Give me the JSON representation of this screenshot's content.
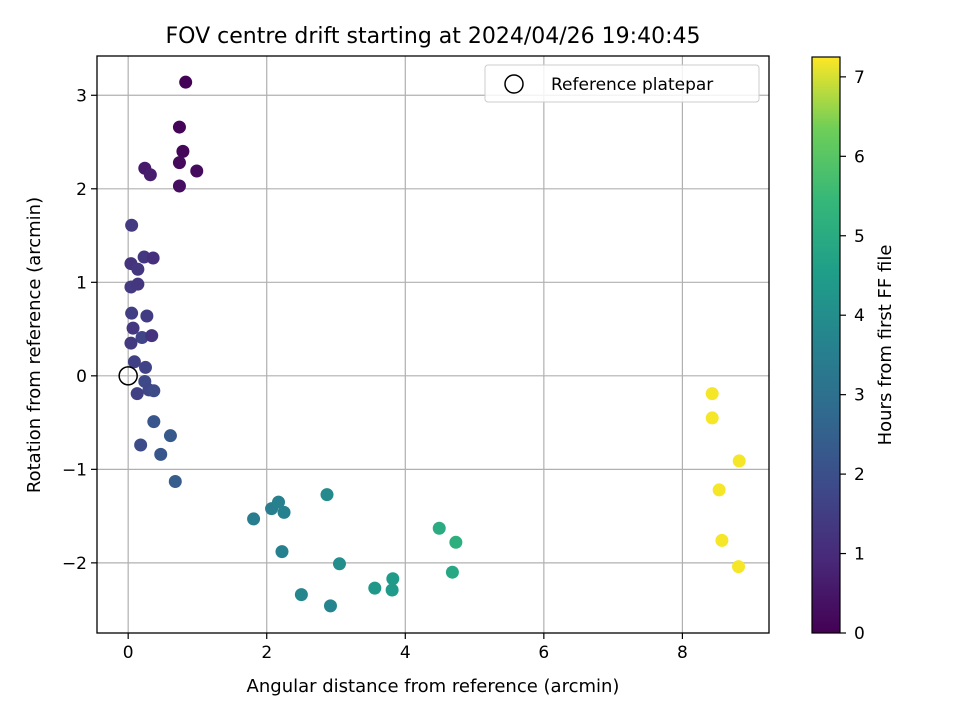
{
  "chart_data": {
    "type": "scatter",
    "title": "FOV centre drift starting at 2024/04/26 19:40:45",
    "xlabel": "Angular distance from reference (arcmin)",
    "ylabel": "Rotation from reference (arcmin)",
    "xlim": [
      -0.45,
      9.25
    ],
    "ylim": [
      -2.75,
      3.42
    ],
    "xticks": [
      0,
      2,
      4,
      6,
      8
    ],
    "xtick_labels": [
      "0",
      "2",
      "4",
      "6",
      "8"
    ],
    "yticks": [
      -2,
      -1,
      0,
      1,
      2,
      3
    ],
    "ytick_labels": [
      "−2",
      "−1",
      "0",
      "1",
      "2",
      "3"
    ],
    "grid": true,
    "colormap": "viridis",
    "colorbar": {
      "label": "Hours from first FF file",
      "range": [
        0,
        7.25
      ],
      "ticks": [
        0,
        1,
        2,
        3,
        4,
        5,
        6,
        7
      ],
      "tick_labels": [
        "0",
        "1",
        "2",
        "3",
        "4",
        "5",
        "6",
        "7"
      ]
    },
    "legend": {
      "location": "top-right",
      "entries": [
        "Reference platepar"
      ]
    },
    "reference_point": {
      "x": 0,
      "y": 0
    },
    "points": [
      {
        "x": 0.83,
        "y": 3.14,
        "h": 0.05
      },
      {
        "x": 0.74,
        "y": 2.66,
        "h": 0.1
      },
      {
        "x": 0.79,
        "y": 2.4,
        "h": 0.15
      },
      {
        "x": 0.74,
        "y": 2.28,
        "h": 0.2
      },
      {
        "x": 0.99,
        "y": 2.19,
        "h": 0.25
      },
      {
        "x": 0.74,
        "y": 2.03,
        "h": 0.3
      },
      {
        "x": 0.24,
        "y": 2.22,
        "h": 0.55
      },
      {
        "x": 0.32,
        "y": 2.15,
        "h": 0.65
      },
      {
        "x": 0.05,
        "y": 1.61,
        "h": 1.4
      },
      {
        "x": 0.04,
        "y": 1.2,
        "h": 1.2
      },
      {
        "x": 0.14,
        "y": 1.14,
        "h": 1.3
      },
      {
        "x": 0.23,
        "y": 1.27,
        "h": 1.35
      },
      {
        "x": 0.36,
        "y": 1.26,
        "h": 1.1
      },
      {
        "x": 0.04,
        "y": 0.95,
        "h": 1.4
      },
      {
        "x": 0.14,
        "y": 0.98,
        "h": 1.3
      },
      {
        "x": 0.05,
        "y": 0.67,
        "h": 1.5
      },
      {
        "x": 0.27,
        "y": 0.64,
        "h": 1.45
      },
      {
        "x": 0.07,
        "y": 0.51,
        "h": 1.3
      },
      {
        "x": 0.2,
        "y": 0.41,
        "h": 1.7
      },
      {
        "x": 0.34,
        "y": 0.43,
        "h": 1.2
      },
      {
        "x": 0.04,
        "y": 0.35,
        "h": 1.4
      },
      {
        "x": 0.09,
        "y": 0.15,
        "h": 1.6
      },
      {
        "x": 0.25,
        "y": 0.09,
        "h": 1.65
      },
      {
        "x": 0.24,
        "y": -0.06,
        "h": 1.8
      },
      {
        "x": 0.3,
        "y": -0.15,
        "h": 1.75
      },
      {
        "x": 0.37,
        "y": -0.16,
        "h": 1.9
      },
      {
        "x": 0.13,
        "y": -0.19,
        "h": 1.6
      },
      {
        "x": 0.37,
        "y": -0.49,
        "h": 2.2
      },
      {
        "x": 0.61,
        "y": -0.64,
        "h": 2.3
      },
      {
        "x": 0.18,
        "y": -0.74,
        "h": 1.9
      },
      {
        "x": 0.47,
        "y": -0.84,
        "h": 2.2
      },
      {
        "x": 0.68,
        "y": -1.13,
        "h": 2.4
      },
      {
        "x": 1.81,
        "y": -1.53,
        "h": 3.45
      },
      {
        "x": 2.07,
        "y": -1.42,
        "h": 3.5
      },
      {
        "x": 2.17,
        "y": -1.35,
        "h": 3.55
      },
      {
        "x": 2.25,
        "y": -1.46,
        "h": 3.6
      },
      {
        "x": 2.22,
        "y": -1.88,
        "h": 3.55
      },
      {
        "x": 2.5,
        "y": -2.34,
        "h": 3.8
      },
      {
        "x": 2.87,
        "y": -1.27,
        "h": 3.9
      },
      {
        "x": 2.92,
        "y": -2.46,
        "h": 3.7
      },
      {
        "x": 3.05,
        "y": -2.01,
        "h": 4.0
      },
      {
        "x": 3.56,
        "y": -2.27,
        "h": 4.3
      },
      {
        "x": 3.81,
        "y": -2.29,
        "h": 4.4
      },
      {
        "x": 3.82,
        "y": -2.17,
        "h": 4.45
      },
      {
        "x": 4.49,
        "y": -1.63,
        "h": 5.0
      },
      {
        "x": 4.73,
        "y": -1.78,
        "h": 5.1
      },
      {
        "x": 4.68,
        "y": -2.1,
        "h": 4.85
      },
      {
        "x": 8.43,
        "y": -0.19,
        "h": 7.2
      },
      {
        "x": 8.43,
        "y": -0.45,
        "h": 7.2
      },
      {
        "x": 8.82,
        "y": -0.91,
        "h": 7.2
      },
      {
        "x": 8.53,
        "y": -1.22,
        "h": 7.2
      },
      {
        "x": 8.57,
        "y": -1.76,
        "h": 7.2
      },
      {
        "x": 8.81,
        "y": -2.04,
        "h": 7.2
      }
    ]
  }
}
